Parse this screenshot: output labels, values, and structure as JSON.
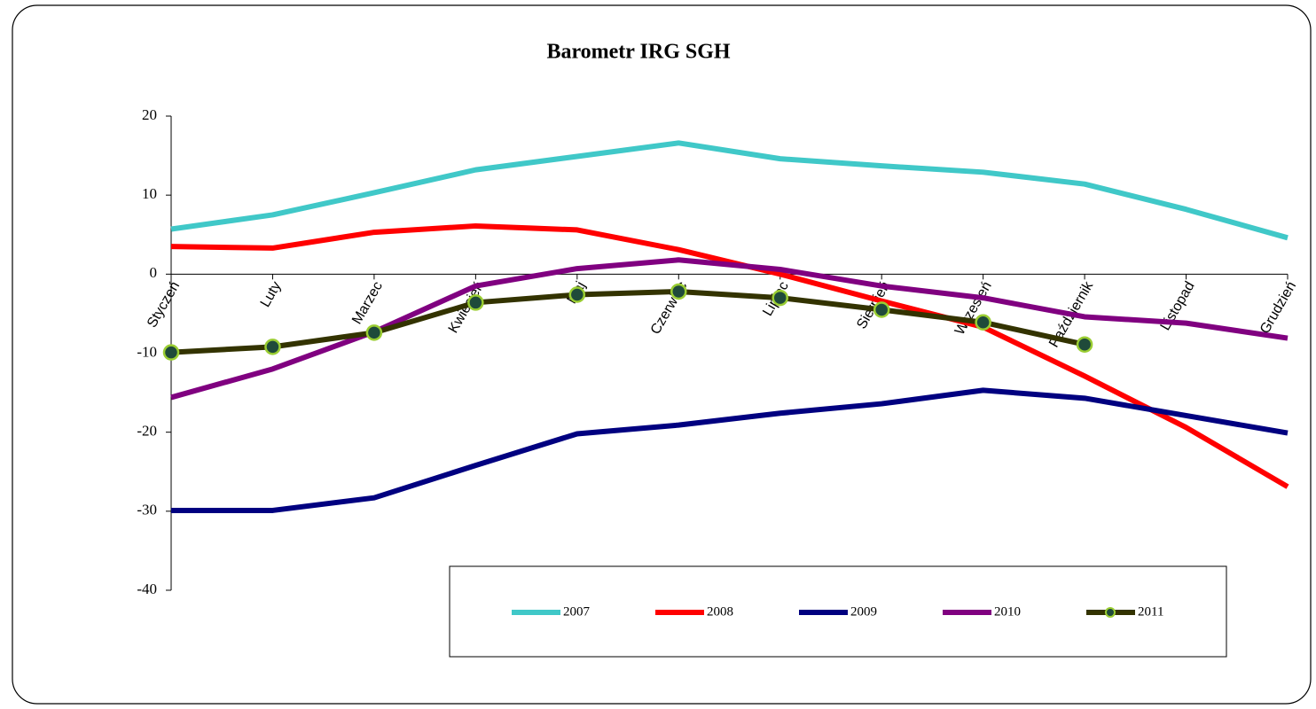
{
  "chart_data": {
    "type": "line",
    "title": "Barometr IRG SGH",
    "categories": [
      "Styczeń",
      "Luty",
      "Marzec",
      "Kwiecień",
      "Maj",
      "Czerwiec",
      "Lipiec",
      "Sierpień",
      "Wrzesień",
      "Październik",
      "Listopad",
      "Grudzień"
    ],
    "series": [
      {
        "name": "2007",
        "color": "#40c8c8",
        "values": [
          5.7,
          7.5,
          10.3,
          13.2,
          14.9,
          16.6,
          14.6,
          13.7,
          12.9,
          11.4,
          8.2,
          4.6
        ]
      },
      {
        "name": "2008",
        "color": "#ff0000",
        "values": [
          3.5,
          3.3,
          5.3,
          6.1,
          5.6,
          3.1,
          0,
          -3.4,
          -6.7,
          -12.9,
          -19.4,
          -26.9
        ]
      },
      {
        "name": "2009",
        "color": "#000080",
        "values": [
          -29.9,
          -29.9,
          -28.3,
          -24.2,
          -20.2,
          -19.1,
          -17.6,
          -16.4,
          -14.7,
          -15.7,
          -17.9,
          -20.1
        ]
      },
      {
        "name": "2010",
        "color": "#800080",
        "values": [
          -15.6,
          -12,
          -7.3,
          -1.5,
          0.7,
          1.8,
          0.6,
          -1.5,
          -3,
          -5.4,
          -6.2,
          -8.1
        ]
      },
      {
        "name": "2011",
        "color": "#333300",
        "marker": true,
        "values": [
          -9.9,
          -9.2,
          -7.4,
          -3.6,
          -2.6,
          -2.2,
          -3,
          -4.5,
          -6.1,
          -8.9,
          null,
          null
        ]
      }
    ],
    "ylim": [
      -40,
      20
    ],
    "yticks": [
      -40,
      -30,
      -20,
      -10,
      0,
      10,
      20
    ],
    "legend": "bottom"
  }
}
